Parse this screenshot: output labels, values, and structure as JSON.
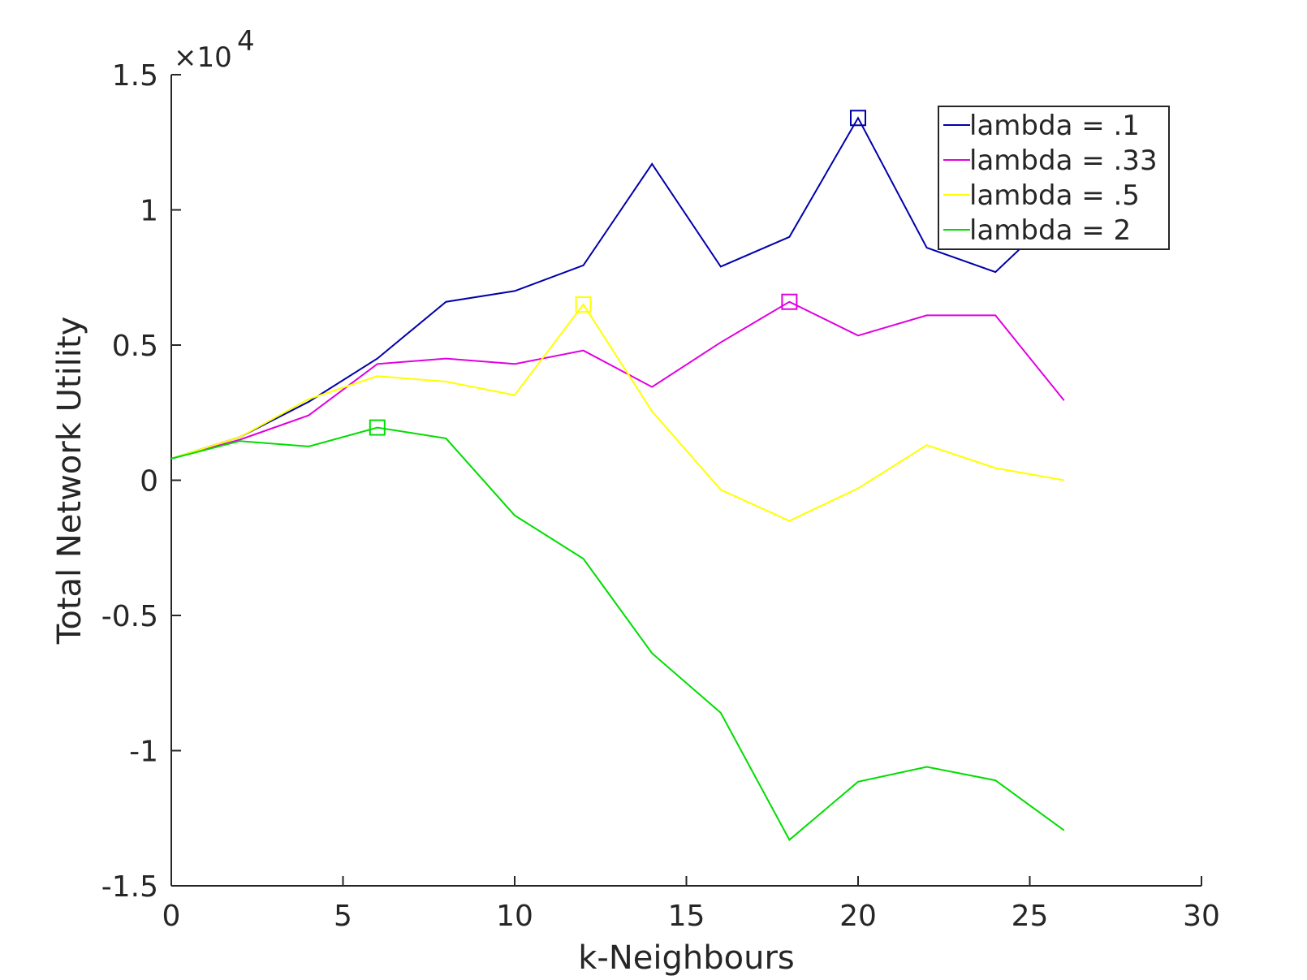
{
  "chart_data": {
    "type": "line",
    "title": "",
    "xlabel": "k-Neighbours",
    "ylabel": "Total Network Utility",
    "y_exponent_label": "×10",
    "y_exponent_power": "4",
    "xlim": [
      0,
      30
    ],
    "ylim": [
      -15000,
      15000
    ],
    "x_ticks": [
      0,
      5,
      10,
      15,
      20,
      25,
      30
    ],
    "x_tick_labels": [
      "0",
      "5",
      "10",
      "15",
      "20",
      "25",
      "30"
    ],
    "y_ticks": [
      15000,
      10000,
      5000,
      0,
      -5000,
      -10000,
      -15000
    ],
    "y_tick_labels": [
      "1.5",
      "1",
      "0.5",
      "0",
      "-0.5",
      "-1",
      "-1.5"
    ],
    "grid": false,
    "legend_position": "top-right",
    "x": [
      0,
      2,
      4,
      6,
      8,
      10,
      12,
      14,
      16,
      18,
      20,
      22,
      24,
      26
    ],
    "series": [
      {
        "name": "lambda = .1",
        "color": "#0000aa",
        "values": [
          800,
          1600,
          2900,
          4500,
          6600,
          7000,
          7950,
          11700,
          7900,
          9000,
          13400,
          8600,
          7700,
          10100
        ],
        "marker_x": 20,
        "marker_y": 13400
      },
      {
        "name": "lambda = .33",
        "color": "#e000e0",
        "values": [
          800,
          1500,
          2400,
          4300,
          4500,
          4300,
          4800,
          3450,
          5100,
          6600,
          5350,
          6100,
          6100,
          2950
        ],
        "marker_x": 18,
        "marker_y": 6600
      },
      {
        "name": "lambda = .5",
        "color": "#ffff00",
        "values": [
          800,
          1600,
          3000,
          3850,
          3650,
          3150,
          6500,
          2550,
          -350,
          -1500,
          -300,
          1300,
          450,
          0
        ],
        "marker_x": 12,
        "marker_y": 6500
      },
      {
        "name": "lambda = 2",
        "color": "#00dd00",
        "values": [
          800,
          1450,
          1250,
          1950,
          1550,
          -1300,
          -2900,
          -6400,
          -8600,
          -13300,
          -11150,
          -10600,
          -11100,
          -12950
        ],
        "marker_x": 6,
        "marker_y": 1950
      }
    ]
  }
}
